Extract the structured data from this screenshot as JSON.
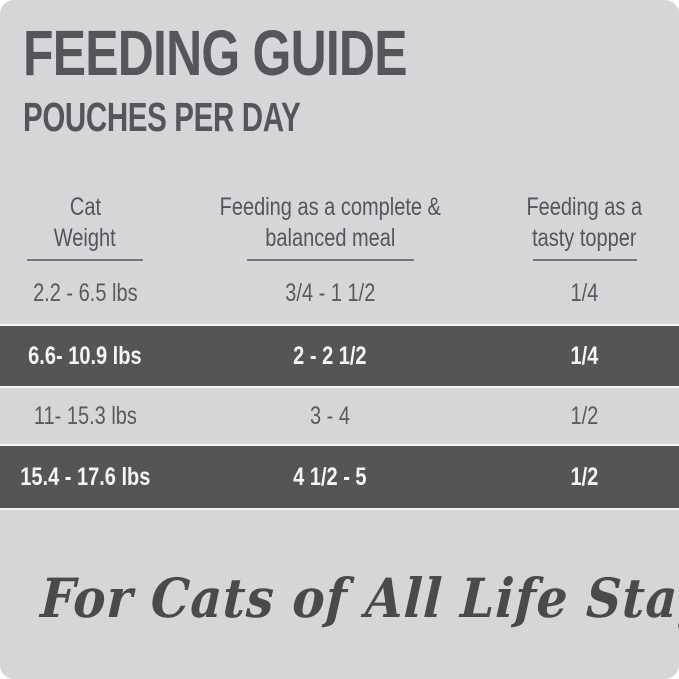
{
  "colors": {
    "background": "#d5d6d7",
    "highlight_row": "#555456",
    "heading_text": "#56565a",
    "body_text": "#5b5b5e",
    "highlight_text": "#f6f6f6",
    "rule_color": "#76767a",
    "tagline_text": "#4a4a4c"
  },
  "header": {
    "title": "FEEDING GUIDE",
    "subtitle": "POUCHES PER DAY"
  },
  "table": {
    "columns": [
      {
        "label_line1": "Cat",
        "label_line2": "Weight"
      },
      {
        "label_line1": "Feeding as a complete &",
        "label_line2": "balanced meal"
      },
      {
        "label_line1": "Feeding as a",
        "label_line2": "tasty topper"
      }
    ],
    "rows": [
      {
        "weight": "2.2 - 6.5 lbs",
        "meal": "3/4 - 1 1/2",
        "topper": "1/4",
        "highlighted": false
      },
      {
        "weight": "6.6- 10.9 lbs",
        "meal": "2 - 2 1/2",
        "topper": "1/4",
        "highlighted": true
      },
      {
        "weight": "11- 15.3 lbs",
        "meal": "3 - 4",
        "topper": "1/2",
        "highlighted": false
      },
      {
        "weight": "15.4 - 17.6 lbs",
        "meal": "4 1/2 - 5",
        "topper": "1/2",
        "highlighted": true
      }
    ]
  },
  "footer": {
    "tagline": "For Cats of All Life Stages"
  }
}
